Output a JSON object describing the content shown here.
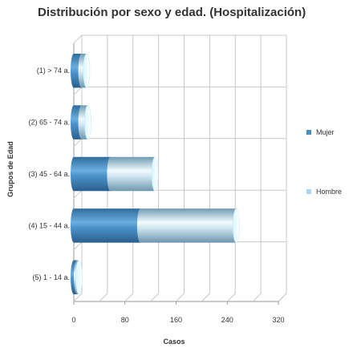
{
  "chart_data": {
    "type": "bar",
    "orientation": "horizontal",
    "stacked": true,
    "style": "3d-cylinder",
    "title": "Distribución por sexo y edad. (Hospitalización)",
    "xlabel": "Casos",
    "ylabel": "Grupos de Edad",
    "categories": [
      "(1) > 74 a.",
      "(2) 65 - 74 a.",
      "(3) 45 - 64 a.",
      "(4) 15 - 44 a.",
      "(5) 1 - 14 a."
    ],
    "series": [
      {
        "name": "Mujer",
        "values": [
          12,
          12,
          57,
          104,
          5
        ],
        "color": "#4a8fc4"
      },
      {
        "name": "Hombre",
        "values": [
          8,
          10,
          70,
          150,
          3
        ],
        "color": "#a9d7f3"
      }
    ],
    "xlim": [
      0,
      320
    ],
    "xticks": [
      "0",
      "80",
      "160",
      "240",
      "320"
    ],
    "grid": true,
    "legend_position": "right"
  }
}
